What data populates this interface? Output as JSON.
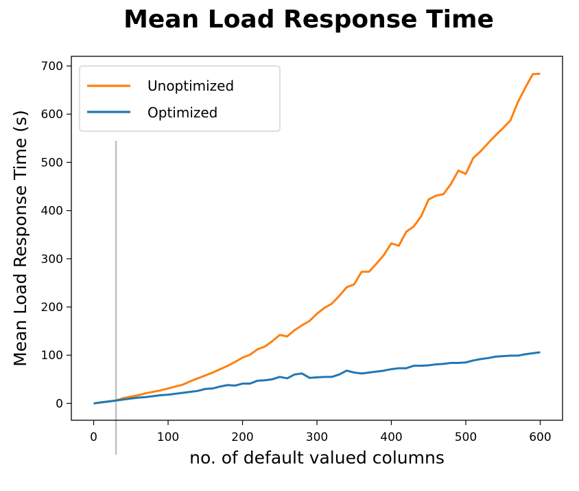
{
  "chart_data": {
    "type": "line",
    "title": "Mean Load Response Time",
    "xlabel": "no. of default valued columns",
    "ylabel": "Mean Load Response Time (s)",
    "xlim": [
      -30,
      630
    ],
    "ylim": [
      -35,
      720
    ],
    "xticks": [
      0,
      100,
      200,
      300,
      400,
      500,
      600
    ],
    "yticks": [
      0,
      100,
      200,
      300,
      400,
      500,
      600,
      700
    ],
    "grid": false,
    "legend_position": "top-left",
    "vertical_marker_x": 30,
    "x": [
      0,
      10,
      20,
      30,
      40,
      50,
      60,
      70,
      80,
      90,
      100,
      110,
      120,
      130,
      140,
      150,
      160,
      170,
      180,
      190,
      200,
      210,
      220,
      230,
      240,
      250,
      260,
      270,
      280,
      290,
      300,
      310,
      320,
      330,
      340,
      350,
      360,
      370,
      380,
      390,
      400,
      410,
      420,
      430,
      440,
      450,
      460,
      470,
      480,
      490,
      500,
      510,
      520,
      530,
      540,
      550,
      560,
      570,
      580,
      590,
      600
    ],
    "series": [
      {
        "name": "Unoptimized",
        "color": "#ff7f0e",
        "values": [
          0,
          2,
          4,
          6,
          11,
          14,
          17,
          21,
          24,
          27,
          31,
          35,
          39,
          46,
          52,
          58,
          64,
          71,
          78,
          86,
          95,
          101,
          112,
          118,
          129,
          142,
          139,
          152,
          162,
          171,
          186,
          198,
          207,
          223,
          241,
          247,
          273,
          273,
          290,
          308,
          332,
          327,
          356,
          367,
          388,
          423,
          431,
          434,
          455,
          483,
          476,
          509,
          523,
          540,
          556,
          571,
          587,
          625,
          655,
          683,
          684
        ]
      },
      {
        "name": "Optimized",
        "color": "#1f77b4",
        "values": [
          0,
          2,
          4,
          6,
          8,
          10,
          12,
          13,
          15,
          17,
          18,
          20,
          22,
          24,
          26,
          30,
          31,
          35,
          38,
          37,
          41,
          41,
          47,
          48,
          50,
          55,
          52,
          60,
          62,
          53,
          54,
          55,
          55,
          60,
          68,
          64,
          62,
          64,
          66,
          68,
          71,
          73,
          73,
          78,
          78,
          79,
          81,
          82,
          84,
          84,
          85,
          89,
          92,
          94,
          97,
          98,
          99,
          99,
          102,
          104,
          106
        ]
      }
    ]
  }
}
